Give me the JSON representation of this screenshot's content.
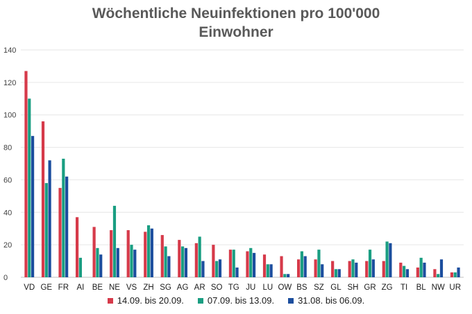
{
  "chart_data": {
    "type": "bar",
    "title": "Wöchentliche Neuinfektionen pro 100'000 Einwohner",
    "title_lines": [
      "Wöchentliche Neuinfektionen pro 100'000",
      "Einwohner"
    ],
    "xlabel": "",
    "ylabel": "",
    "ylim": [
      0,
      140
    ],
    "yticks": [
      0,
      20,
      40,
      60,
      80,
      100,
      120,
      140
    ],
    "grid": true,
    "legend_position": "bottom",
    "categories": [
      "VD",
      "GE",
      "FR",
      "AI",
      "BE",
      "NE",
      "VS",
      "ZH",
      "SG",
      "AG",
      "AR",
      "SO",
      "TG",
      "JU",
      "LU",
      "OW",
      "BS",
      "SZ",
      "GL",
      "SH",
      "GR",
      "ZG",
      "TI",
      "BL",
      "NW",
      "UR"
    ],
    "series": [
      {
        "name": "14.09. bis 20.09.",
        "color": "#d63a4a",
        "values": [
          127,
          96,
          55,
          37,
          31,
          29,
          29,
          28,
          26,
          23,
          21,
          20,
          17,
          16,
          14,
          13,
          11,
          11,
          10,
          10,
          10,
          10,
          9,
          6,
          5,
          3
        ]
      },
      {
        "name": "07.09. bis 13.09.",
        "color": "#1a9e82",
        "values": [
          110,
          58,
          73,
          12,
          18,
          44,
          20,
          32,
          19,
          19,
          25,
          10,
          17,
          18,
          8,
          2,
          16,
          17,
          5,
          11,
          17,
          22,
          7,
          12,
          2,
          3
        ]
      },
      {
        "name": "31.08. bis 06.09.",
        "color": "#1c4e9e",
        "values": [
          87,
          72,
          62,
          0,
          14,
          18,
          17,
          30,
          13,
          18,
          10,
          11,
          6,
          15,
          8,
          2,
          13,
          8,
          5,
          9,
          11,
          21,
          5,
          9,
          11,
          6
        ]
      }
    ]
  }
}
